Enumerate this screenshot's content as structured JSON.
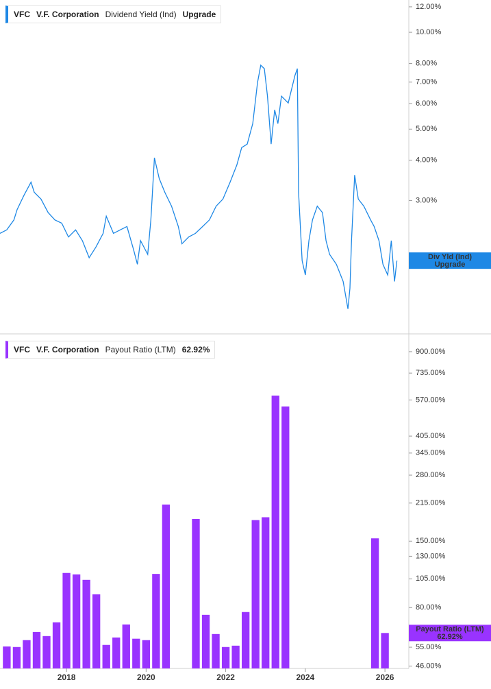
{
  "chart_data": [
    {
      "type": "line",
      "ticker": "VFC",
      "company": "V.F. Corporation",
      "metric": "Dividend Yield (Ind)",
      "badge": "Upgrade",
      "box_label": "Div Yld (Ind)",
      "box_badge": "Upgrade",
      "log_scale": true,
      "xlim": [
        2016.33,
        2026.6
      ],
      "ylim": [
        1.16,
        12.6
      ],
      "yticks": [
        {
          "value": 12,
          "label": "12.00%"
        },
        {
          "value": 10,
          "label": "10.00%"
        },
        {
          "value": 8,
          "label": "8.00%"
        },
        {
          "value": 7,
          "label": "7.00%"
        },
        {
          "value": 6,
          "label": "6.00%"
        },
        {
          "value": 5,
          "label": "5.00%"
        },
        {
          "value": 4,
          "label": "4.00%"
        },
        {
          "value": 3,
          "label": "3.00%"
        }
      ],
      "series": [
        {
          "name": "Dividend Yield (Ind)",
          "color": "#1e88e5",
          "x": [
            2016.33,
            2016.5,
            2016.68,
            2016.76,
            2016.93,
            2017.11,
            2017.19,
            2017.36,
            2017.54,
            2017.71,
            2017.88,
            2018.05,
            2018.23,
            2018.4,
            2018.57,
            2018.74,
            2018.92,
            2019.0,
            2019.18,
            2019.35,
            2019.52,
            2019.69,
            2019.78,
            2019.86,
            2020.04,
            2020.12,
            2020.21,
            2020.33,
            2020.47,
            2020.64,
            2020.81,
            2020.9,
            2021.07,
            2021.24,
            2021.42,
            2021.59,
            2021.76,
            2021.93,
            2022.11,
            2022.28,
            2022.4,
            2022.54,
            2022.68,
            2022.8,
            2022.88,
            2022.97,
            2023.05,
            2023.14,
            2023.23,
            2023.31,
            2023.4,
            2023.57,
            2023.74,
            2023.8,
            2023.83,
            2023.92,
            2024.0,
            2024.09,
            2024.18,
            2024.3,
            2024.43,
            2024.52,
            2024.61,
            2024.78,
            2024.95,
            2025.07,
            2025.12,
            2025.16,
            2025.24,
            2025.33,
            2025.47,
            2025.64,
            2025.73,
            2025.85,
            2025.95,
            2026.07,
            2026.16,
            2026.24,
            2026.3
          ],
          "values": [
            2.37,
            2.43,
            2.61,
            2.81,
            3.11,
            3.42,
            3.18,
            3.03,
            2.75,
            2.61,
            2.55,
            2.31,
            2.43,
            2.25,
            1.99,
            2.15,
            2.37,
            2.68,
            2.37,
            2.43,
            2.49,
            2.1,
            1.9,
            2.25,
            2.04,
            2.61,
            4.07,
            3.51,
            3.18,
            2.88,
            2.49,
            2.2,
            2.31,
            2.37,
            2.49,
            2.61,
            2.88,
            3.03,
            3.42,
            3.87,
            4.38,
            4.49,
            5.2,
            6.99,
            7.9,
            7.71,
            6.33,
            4.49,
            5.74,
            5.2,
            6.33,
            6.03,
            7.34,
            7.71,
            3.18,
            1.95,
            1.76,
            2.25,
            2.61,
            2.88,
            2.75,
            2.25,
            2.04,
            1.9,
            1.68,
            1.38,
            1.6,
            2.25,
            3.6,
            3.03,
            2.88,
            2.61,
            2.49,
            2.25,
            1.9,
            1.76,
            2.25,
            1.68,
            1.95
          ]
        }
      ]
    },
    {
      "type": "bar",
      "ticker": "VFC",
      "company": "V.F. Corporation",
      "metric": "Payout Ratio (LTM)",
      "last_value_label": "62.92%",
      "box_label": "Payout Ratio (LTM)",
      "log_scale": true,
      "xlim": [
        2016.33,
        2026.6
      ],
      "ylim": [
        45,
        1058
      ],
      "xticks": [
        2018,
        2020,
        2022,
        2024,
        2026
      ],
      "yticks": [
        {
          "value": 900,
          "label": "900.00%"
        },
        {
          "value": 735,
          "label": "735.00%"
        },
        {
          "value": 570,
          "label": "570.00%"
        },
        {
          "value": 405,
          "label": "405.00%"
        },
        {
          "value": 345,
          "label": "345.00%"
        },
        {
          "value": 280,
          "label": "280.00%"
        },
        {
          "value": 215,
          "label": "215.00%"
        },
        {
          "value": 150,
          "label": "150.00%"
        },
        {
          "value": 130,
          "label": "130.00%"
        },
        {
          "value": 105,
          "label": "105.00%"
        },
        {
          "value": 80,
          "label": "80.00%"
        },
        {
          "value": 55,
          "label": "55.00%"
        },
        {
          "value": 46,
          "label": "46.00%"
        }
      ],
      "series": [
        {
          "name": "Payout Ratio (LTM)",
          "color": "#9933ff",
          "x": [
            2016.5,
            2016.75,
            2017.0,
            2017.25,
            2017.5,
            2017.75,
            2018.0,
            2018.25,
            2018.5,
            2018.75,
            2019.0,
            2019.25,
            2019.5,
            2019.75,
            2020.0,
            2020.25,
            2020.5,
            2021.25,
            2021.5,
            2021.75,
            2022.0,
            2022.25,
            2022.5,
            2022.75,
            2023.0,
            2023.25,
            2023.5,
            2025.75,
            2026.0
          ],
          "values": [
            55.4,
            55.1,
            58.8,
            63.5,
            61.1,
            69.6,
            111,
            109.5,
            104,
            90.7,
            56.2,
            60.3,
            68.2,
            59.6,
            58.8,
            110,
            212,
            185,
            74.7,
            62.3,
            55.1,
            55.8,
            76.7,
            183,
            188,
            594,
            536,
            154,
            62.92
          ]
        }
      ]
    }
  ]
}
